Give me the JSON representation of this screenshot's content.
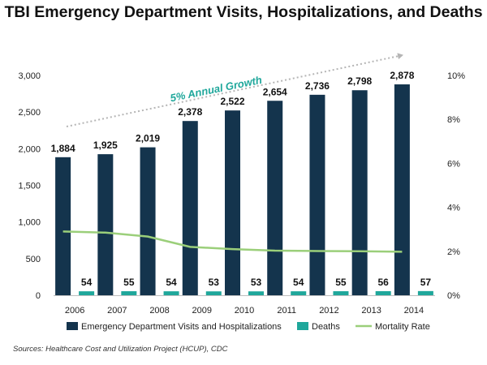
{
  "chart_data": {
    "type": "bar",
    "title": "TBI Emergency Department Visits, Hospitalizations, and Deaths",
    "categories": [
      "2006",
      "2007",
      "2008",
      "2009",
      "2010",
      "2011",
      "2012",
      "2013",
      "2014"
    ],
    "series": [
      {
        "name": "Emergency Department Visits and Hospitalizations",
        "type": "bar",
        "axis": "left",
        "color": "#14344d",
        "values": [
          1884,
          1925,
          2019,
          2378,
          2522,
          2654,
          2736,
          2798,
          2878
        ],
        "labels": [
          "1,884",
          "1,925",
          "2,019",
          "2,378",
          "2,522",
          "2,654",
          "2,736",
          "2,798",
          "2,878"
        ]
      },
      {
        "name": "Deaths",
        "type": "bar",
        "axis": "left",
        "color": "#1fa79b",
        "values": [
          54,
          55,
          54,
          53,
          53,
          54,
          55,
          56,
          57
        ],
        "labels": [
          "54",
          "55",
          "54",
          "53",
          "53",
          "54",
          "55",
          "56",
          "57"
        ]
      },
      {
        "name": "Mortality Rate",
        "type": "line",
        "axis": "right",
        "color": "#9bcf7a",
        "values": [
          2.9,
          2.85,
          2.67,
          2.2,
          2.1,
          2.03,
          2.01,
          2.0,
          1.98
        ]
      }
    ],
    "y_left": {
      "ylim": [
        0,
        3000
      ],
      "ticks": [
        0,
        500,
        1000,
        1500,
        2000,
        2500,
        3000
      ],
      "tick_labels": [
        "0",
        "500",
        "1,000",
        "1,500",
        "2,000",
        "2,500",
        "3,000"
      ]
    },
    "y_right": {
      "ylim": [
        0,
        10
      ],
      "ticks": [
        0,
        2,
        4,
        6,
        8,
        10
      ],
      "tick_labels": [
        "0%",
        "2%",
        "4%",
        "6%",
        "8%",
        "10%"
      ]
    },
    "grid": false,
    "legend_position": "bottom",
    "annotation": {
      "text": "5% Annual Growth",
      "color": "#1fa79b",
      "arrow_color": "#b5b5b5"
    }
  },
  "source_note": "Sources: Healthcare Cost and Utilization Project (HCUP), CDC"
}
